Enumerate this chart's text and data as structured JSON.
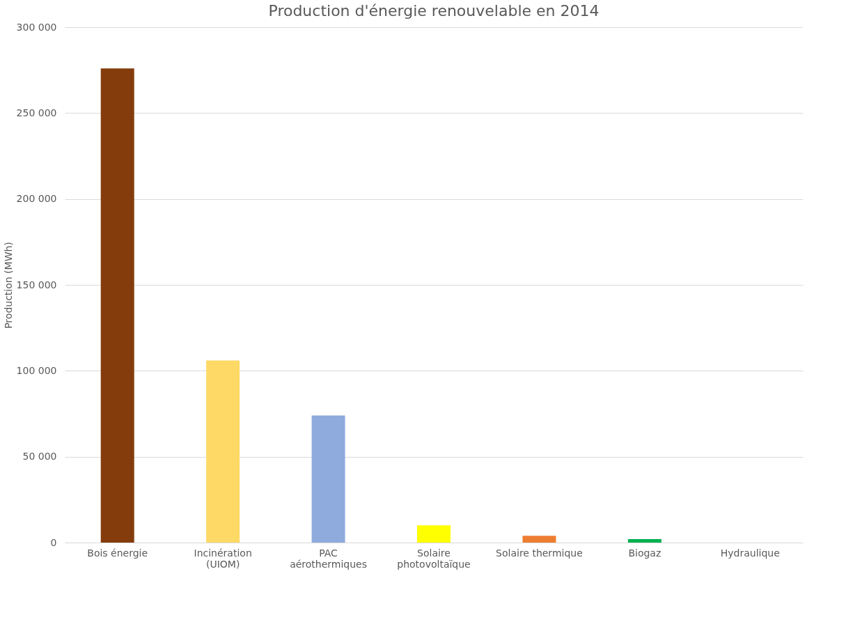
{
  "chart_data": {
    "type": "bar",
    "title": "Production d'énergie renouvelable en 2014",
    "ylabel": "Production (MWh)",
    "categories": [
      "Bois énergie",
      "Incinération\n(UIOM)",
      "PAC\naérothermiques",
      "Solaire\nphotovoltaïque",
      "Solaire thermique",
      "Biogaz",
      "Hydraulique"
    ],
    "values": [
      276000,
      106000,
      74000,
      10000,
      4000,
      2000,
      0
    ],
    "colors": [
      "#843c0c",
      "#ffd966",
      "#8faadc",
      "#ffff00",
      "#ed7d31",
      "#00b050",
      "#5b9bd5"
    ],
    "ylim": [
      0,
      300000
    ],
    "yticks": [
      {
        "value": 0,
        "label": "0"
      },
      {
        "value": 50000,
        "label": "50 000"
      },
      {
        "value": 100000,
        "label": "100 000"
      },
      {
        "value": 150000,
        "label": "150 000"
      },
      {
        "value": 200000,
        "label": "200 000"
      },
      {
        "value": 250000,
        "label": "250 000"
      },
      {
        "value": 300000,
        "label": "300 000"
      }
    ],
    "grid": "y"
  }
}
